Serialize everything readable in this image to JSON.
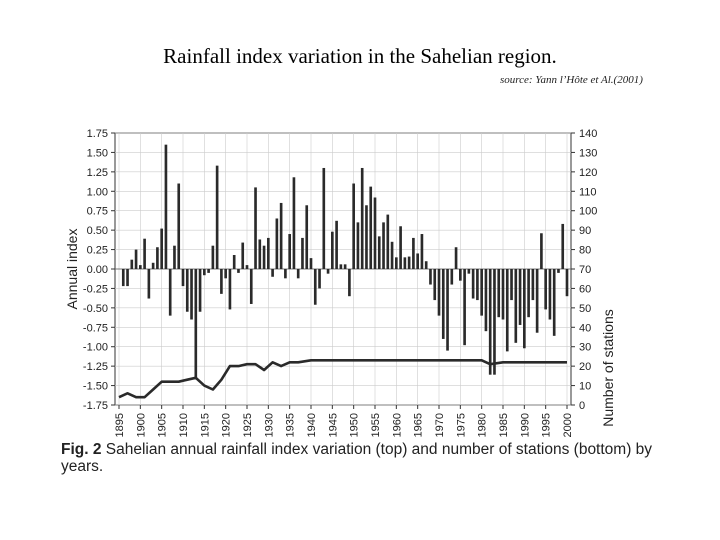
{
  "page": {
    "title": "Rainfall index variation in the Sahelian region.",
    "source": "source: Yann l’Hôte et Al.(2001)"
  },
  "caption": {
    "label": "Fig. 2",
    "text": " Sahelian annual rainfall index variation (top) and number of stations (bottom) by years."
  },
  "colors": {
    "bars": "#2a2a2a",
    "line": "#2a2a2a",
    "grid": "#cccccc"
  },
  "chart_data": {
    "type": "bar",
    "title": "Sahelian annual rainfall index variation (top) and number of stations (bottom) by years",
    "xlabel": "",
    "ylabel": "Annual index",
    "y2label": "Number of stations",
    "xlim": [
      1895,
      2000
    ],
    "ylim": [
      -1.75,
      1.75
    ],
    "y2lim": [
      0,
      140
    ],
    "x_ticks": [
      1895,
      1900,
      1905,
      1910,
      1915,
      1920,
      1925,
      1930,
      1935,
      1940,
      1945,
      1950,
      1955,
      1960,
      1965,
      1970,
      1975,
      1980,
      1985,
      1990,
      1995,
      2000
    ],
    "y_ticks": [
      1.75,
      1.5,
      1.25,
      1.0,
      0.75,
      0.5,
      0.25,
      0.0,
      -0.25,
      -0.5,
      -0.75,
      -1.0,
      -1.25,
      -1.5,
      -1.75
    ],
    "y_tick_labels": [
      "1.75",
      "1.50",
      "1.25",
      "1.00",
      "0.75",
      "0.50",
      "0.25",
      "0.00",
      "-0.25",
      "-0.50",
      "-0.75",
      "-1.00",
      "-1.25",
      "-1.50",
      "-1.75"
    ],
    "y2_ticks": [
      140,
      130,
      120,
      110,
      100,
      90,
      80,
      70,
      60,
      50,
      40,
      30,
      20,
      10,
      0
    ],
    "series": [
      {
        "name": "Annual rainfall index",
        "type": "bar",
        "axis": "left",
        "years": [
          1896,
          1897,
          1898,
          1899,
          1900,
          1901,
          1902,
          1903,
          1904,
          1905,
          1906,
          1907,
          1908,
          1909,
          1910,
          1911,
          1912,
          1913,
          1914,
          1915,
          1916,
          1917,
          1918,
          1919,
          1920,
          1921,
          1922,
          1923,
          1924,
          1925,
          1926,
          1927,
          1928,
          1929,
          1930,
          1931,
          1932,
          1933,
          1934,
          1935,
          1936,
          1937,
          1938,
          1939,
          1940,
          1941,
          1942,
          1943,
          1944,
          1945,
          1946,
          1947,
          1948,
          1949,
          1950,
          1951,
          1952,
          1953,
          1954,
          1955,
          1956,
          1957,
          1958,
          1959,
          1960,
          1961,
          1962,
          1963,
          1964,
          1965,
          1966,
          1967,
          1968,
          1969,
          1970,
          1971,
          1972,
          1973,
          1974,
          1975,
          1976,
          1977,
          1978,
          1979,
          1980,
          1981,
          1982,
          1983,
          1984,
          1985,
          1986,
          1987,
          1988,
          1989,
          1990,
          1991,
          1992,
          1993,
          1994,
          1995,
          1996,
          1997,
          1998,
          1999,
          2000
        ],
        "values": [
          -0.22,
          -0.22,
          0.12,
          0.25,
          0.05,
          0.39,
          -0.38,
          0.08,
          0.28,
          0.52,
          1.6,
          -0.6,
          0.3,
          1.1,
          -0.22,
          -0.55,
          -0.65,
          -1.42,
          -0.55,
          -0.08,
          -0.05,
          0.3,
          1.33,
          -0.32,
          -0.12,
          -0.52,
          0.18,
          -0.05,
          0.34,
          0.05,
          -0.45,
          1.05,
          0.38,
          0.3,
          0.4,
          -0.1,
          0.65,
          0.85,
          -0.12,
          0.45,
          1.18,
          -0.12,
          0.4,
          0.82,
          0.14,
          -0.46,
          -0.25,
          1.3,
          -0.06,
          0.48,
          0.62,
          0.06,
          0.06,
          -0.35,
          1.1,
          0.6,
          1.3,
          0.82,
          1.06,
          0.92,
          0.42,
          0.6,
          0.7,
          0.35,
          0.15,
          0.55,
          0.15,
          0.16,
          0.4,
          0.2,
          0.45,
          0.1,
          -0.2,
          -0.4,
          -0.6,
          -0.9,
          -1.05,
          -0.2,
          0.28,
          -0.15,
          -0.98,
          -0.06,
          -0.38,
          -0.4,
          -0.6,
          -0.8,
          -1.36,
          -1.36,
          -0.62,
          -0.65,
          -1.06,
          -0.4,
          -0.95,
          -0.72,
          -1.02,
          -0.62,
          -0.4,
          -0.82,
          0.46,
          -0.52,
          -0.65,
          -0.86,
          -0.05,
          0.58,
          -0.35
        ]
      },
      {
        "name": "Number of stations",
        "type": "line",
        "axis": "right",
        "years": [
          1895,
          1897,
          1899,
          1901,
          1903,
          1905,
          1907,
          1909,
          1911,
          1913,
          1915,
          1917,
          1919,
          1921,
          1923,
          1925,
          1927,
          1929,
          1931,
          1933,
          1935,
          1937,
          1940,
          1945,
          1950,
          1955,
          1960,
          1965,
          1970,
          1975,
          1980,
          1982,
          1985,
          1990,
          1995,
          2000
        ],
        "values": [
          4,
          6,
          4,
          4,
          8,
          12,
          12,
          12,
          13,
          14,
          10,
          8,
          13,
          20,
          20,
          21,
          21,
          18,
          22,
          20,
          22,
          22,
          23,
          23,
          23,
          23,
          23,
          23,
          23,
          23,
          23,
          21,
          22,
          22,
          22,
          22
        ]
      }
    ]
  }
}
